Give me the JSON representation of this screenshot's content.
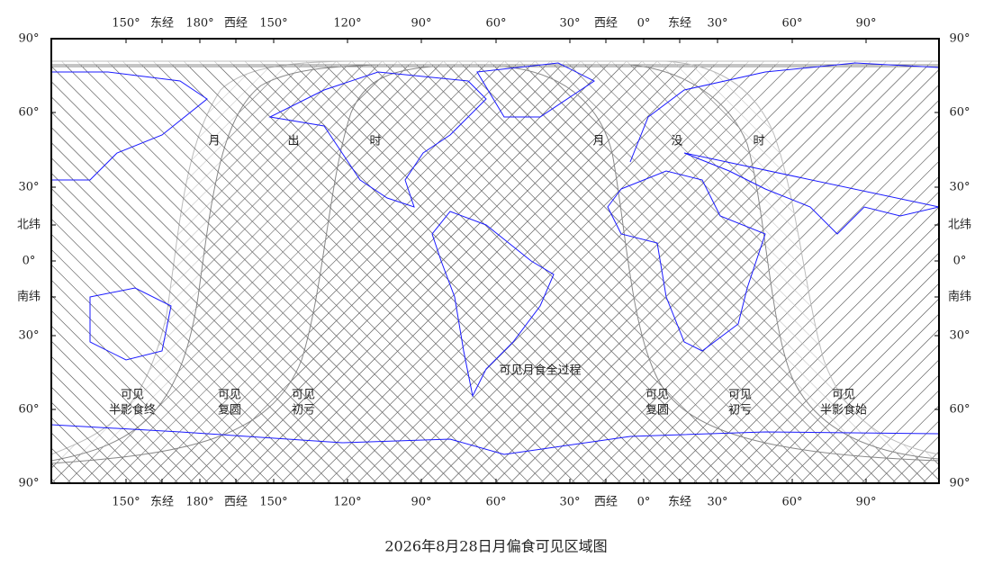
{
  "title": "2026年8月28日月偏食可见区域图",
  "top_labels": [
    "150°",
    "东经",
    "180°",
    "西经",
    "150°",
    "120°",
    "90°",
    "60°",
    "30°",
    "西经",
    "0°",
    "东经",
    "30°",
    "60°",
    "90°"
  ],
  "bottom_labels": [
    "150°",
    "东经",
    "180°",
    "西经",
    "150°",
    "120°",
    "90°",
    "60°",
    "30°",
    "西经",
    "0°",
    "东经",
    "30°",
    "60°",
    "90°"
  ],
  "left_labels": [
    "90°",
    "60°",
    "30°",
    "北纬",
    "0°",
    "南纬",
    "30°",
    "60°",
    "90°"
  ],
  "right_labels": [
    "90°",
    "60°",
    "30°",
    "北纬",
    "0°",
    "南纬",
    "30°",
    "60°",
    "90°"
  ],
  "moonrise_label": [
    "月",
    "出",
    "时"
  ],
  "moonset_label": [
    "月",
    "没",
    "时"
  ],
  "total_visible_label": "可见月食全过程",
  "region_labels": [
    [
      "可见",
      "半影食终"
    ],
    [
      "可见",
      "复圆"
    ],
    [
      "可见",
      "初亏"
    ],
    [
      "可见",
      "复圆"
    ],
    [
      "可见",
      "初亏"
    ],
    [
      "可见",
      "半影食始"
    ]
  ]
}
